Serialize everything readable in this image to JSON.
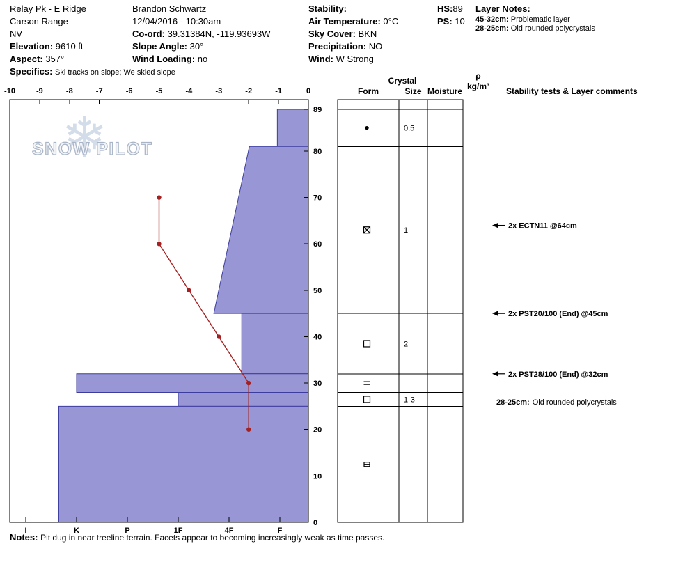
{
  "header": {
    "pit_title": "Relay Pk - E Ridge",
    "range": "Carson Range",
    "state": "NV",
    "elevation_label": "Elevation:",
    "elevation_value": "9610 ft",
    "aspect_label": "Aspect:",
    "aspect_value": "357°",
    "specifics_label": "Specifics:",
    "specifics_value": "Ski tracks on slope; We skied slope",
    "observer_name": "Brandon Schwartz",
    "observation_datetime": "12/04/2016 - 10:30am",
    "coord_label": "Co-ord:",
    "coord_value": "39.31384N, -119.93693W",
    "slope_angle_label": "Slope Angle:",
    "slope_angle_value": "30°",
    "wind_loading_label": "Wind Loading:",
    "wind_loading_value": "no",
    "stability_label": "Stability:",
    "stability_value": "",
    "air_temp_label": "Air Temperature:",
    "air_temp_value": "0°C",
    "sky_cover_label": "Sky Cover:",
    "sky_cover_value": "BKN",
    "precipitation_label": "Precipitation:",
    "precipitation_value": "NO",
    "wind_label": "Wind:",
    "wind_value": "W Strong",
    "hs_label": "HS:",
    "hs_value": "89",
    "ps_label": "PS:",
    "ps_value": "10",
    "layer_notes_title": "Layer Notes:",
    "layer_notes": [
      {
        "range": "45-32cm:",
        "text": "Problematic layer"
      },
      {
        "range": "28-25cm:",
        "text": "Old rounded polycrystals"
      }
    ]
  },
  "watermark": {
    "brand": "SNOW PILOT",
    "snowflake_icon": "❄"
  },
  "table_headers": {
    "crystal": "Crystal",
    "form": "Form",
    "size": "Size",
    "moisture": "Moisture",
    "density_symbol": "ρ",
    "density_units": "kg/m³",
    "stability": "Stability tests & Layer comments"
  },
  "chart_data": {
    "type": "snow-pit-profile",
    "title": "Relay Pk - E Ridge snow pit profile",
    "temp_axis": {
      "unit": "°C",
      "min": -10,
      "max": 0,
      "label_values": [
        -10,
        -9,
        -8,
        -7,
        -6,
        -5,
        -4,
        -3,
        -2,
        -1,
        0
      ]
    },
    "depth_axis": {
      "unit": "cm",
      "min": 0,
      "max": 89,
      "ticks": [
        0,
        10,
        20,
        30,
        40,
        50,
        60,
        70,
        80,
        89
      ]
    },
    "hardness_axis": {
      "labels": [
        "I",
        "K",
        "P",
        "1F",
        "4F",
        "F"
      ],
      "note": "hand hardness, F soft (right) to I hard (left)"
    },
    "temperature_profile": [
      {
        "depth_cm": 70,
        "temp_c": -5
      },
      {
        "depth_cm": 60,
        "temp_c": -5
      },
      {
        "depth_cm": 50,
        "temp_c": -4
      },
      {
        "depth_cm": 40,
        "temp_c": -3
      },
      {
        "depth_cm": 30,
        "temp_c": -2
      },
      {
        "depth_cm": 20,
        "temp_c": -2
      }
    ],
    "layers": [
      {
        "top_cm": 89,
        "bottom_cm": 81,
        "hardness_top": 1.05,
        "hardness_bottom": 1.05,
        "hardness_name": "F",
        "form": "dot",
        "size_mm": "0.5"
      },
      {
        "top_cm": 81,
        "bottom_cm": 45,
        "hardness_top": 1.6,
        "hardness_bottom": 2.3,
        "hardness_name": "F+ to 4F+",
        "form": "square-x",
        "size_mm": "1"
      },
      {
        "top_cm": 45,
        "bottom_cm": 32,
        "hardness_top": 1.75,
        "hardness_bottom": 1.75,
        "hardness_name": "4F-",
        "form": "square",
        "size_mm": "2"
      },
      {
        "top_cm": 32,
        "bottom_cm": 28,
        "hardness_top": 5.0,
        "hardness_bottom": 5.0,
        "hardness_name": "K",
        "form": "equals",
        "size_mm": ""
      },
      {
        "top_cm": 28,
        "bottom_cm": 25,
        "hardness_top": 3.0,
        "hardness_bottom": 3.0,
        "hardness_name": "1F",
        "form": "square",
        "size_mm": "1-3"
      },
      {
        "top_cm": 25,
        "bottom_cm": 0,
        "hardness_top": 5.35,
        "hardness_bottom": 5.35,
        "hardness_name": "K+",
        "form": "square-minus",
        "size_mm": ""
      }
    ],
    "annotations": [
      {
        "depth_cm": 64,
        "arrow": true,
        "text": "2x ECTN11 @64cm"
      },
      {
        "depth_cm": 45,
        "arrow": true,
        "text": "2x PST20/100 (End) @45cm"
      },
      {
        "depth_cm": 32,
        "arrow": true,
        "text": "2x PST28/100 (End) @32cm"
      },
      {
        "depth_cm": 26,
        "arrow": false,
        "bold_prefix": "28-25cm:",
        "text": "Old rounded polycrystals"
      }
    ],
    "colors": {
      "layer_fill": "#9896d5",
      "layer_stroke": "#3c3c9e",
      "temp_line": "#a52121",
      "axis": "#000000"
    }
  },
  "notes": {
    "label": "Notes:",
    "text": "Pit dug in near treeline terrain. Facets appear to becoming increasingly weak as time passes."
  }
}
